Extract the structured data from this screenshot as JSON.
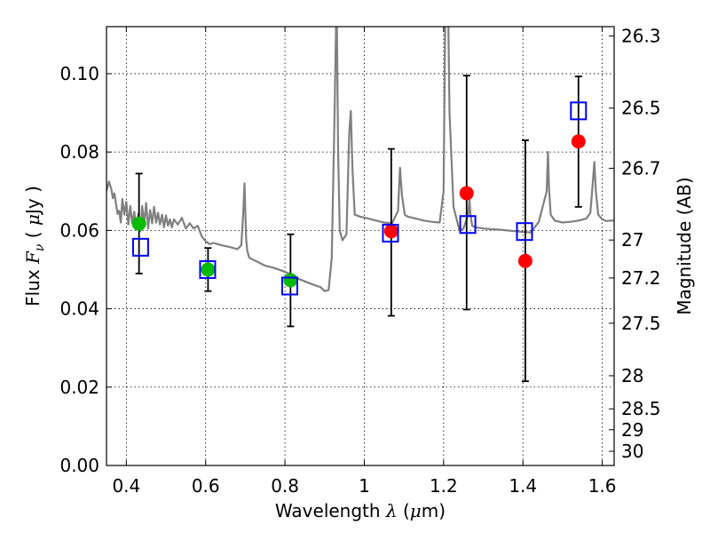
{
  "chart_data": {
    "type": "scatter",
    "xlabel": "Wavelength  λ (μm)",
    "ylabel": "Flux  F_ν  ( μJy )",
    "ylabel_parts": {
      "a": "Flux  ",
      "b": "F",
      "c": "ν",
      "d": "  ( ",
      "e": "μ",
      "f": "Jy )"
    },
    "xlabel_parts": {
      "a": "Wavelength  ",
      "b": "λ",
      "c": " (",
      "d": "μ",
      "e": "m)"
    },
    "y2label": "Magnitude (AB)",
    "xlim": [
      0.35,
      1.63
    ],
    "ylim": [
      0.0,
      0.112
    ],
    "grid": true,
    "x_ticks": [
      {
        "v": 0.4,
        "label": "0.4"
      },
      {
        "v": 0.6,
        "label": "0.6"
      },
      {
        "v": 0.8,
        "label": "0.8"
      },
      {
        "v": 1.0,
        "label": "1"
      },
      {
        "v": 1.2,
        "label": "1.2"
      },
      {
        "v": 1.4,
        "label": "1.4"
      },
      {
        "v": 1.6,
        "label": "1.6"
      }
    ],
    "y_ticks": [
      {
        "v": 0.0,
        "label": "0.00"
      },
      {
        "v": 0.02,
        "label": "0.02"
      },
      {
        "v": 0.04,
        "label": "0.04"
      },
      {
        "v": 0.06,
        "label": "0.06"
      },
      {
        "v": 0.08,
        "label": "0.08"
      },
      {
        "v": 0.1,
        "label": "0.10"
      }
    ],
    "y2_ticks": [
      {
        "label": "26.3",
        "mag": 26.3
      },
      {
        "label": "26.5",
        "mag": 26.5
      },
      {
        "label": "26.7",
        "mag": 26.7
      },
      {
        "label": "27",
        "mag": 27.0
      },
      {
        "label": "27.2",
        "mag": 27.2
      },
      {
        "label": "27.5",
        "mag": 27.5
      },
      {
        "label": "28",
        "mag": 28.0
      },
      {
        "label": "28.5",
        "mag": 28.5
      },
      {
        "label": "29",
        "mag": 29.0
      },
      {
        "label": "30",
        "mag": 30.0
      }
    ],
    "observed": [
      {
        "x": 0.432,
        "y": 0.0617,
        "ylo": 0.049,
        "yhi": 0.0745,
        "color": "#00bb00"
      },
      {
        "x": 0.606,
        "y": 0.05,
        "ylo": 0.0445,
        "yhi": 0.0555,
        "color": "#00bb00"
      },
      {
        "x": 0.814,
        "y": 0.0473,
        "ylo": 0.0355,
        "yhi": 0.059,
        "color": "#00bb00"
      },
      {
        "x": 1.068,
        "y": 0.0598,
        "ylo": 0.0382,
        "yhi": 0.0808,
        "color": "#ff0000"
      },
      {
        "x": 1.258,
        "y": 0.0695,
        "ylo": 0.0398,
        "yhi": 0.0995,
        "color": "#ff0000"
      },
      {
        "x": 1.406,
        "y": 0.0522,
        "ylo": 0.0215,
        "yhi": 0.083,
        "color": "#ff0000"
      },
      {
        "x": 1.54,
        "y": 0.0827,
        "ylo": 0.066,
        "yhi": 0.0993,
        "color": "#ff0000"
      }
    ],
    "model_points": [
      {
        "x": 0.436,
        "y": 0.0557
      },
      {
        "x": 0.605,
        "y": 0.05
      },
      {
        "x": 0.812,
        "y": 0.0458
      },
      {
        "x": 1.066,
        "y": 0.0593
      },
      {
        "x": 1.261,
        "y": 0.0615
      },
      {
        "x": 1.404,
        "y": 0.0597
      },
      {
        "x": 1.54,
        "y": 0.0905
      }
    ],
    "sed_line": {
      "color": "#808080",
      "x": [
        0.35,
        0.356,
        0.362,
        0.366,
        0.37,
        0.374,
        0.378,
        0.382,
        0.386,
        0.39,
        0.395,
        0.4,
        0.405,
        0.41,
        0.415,
        0.42,
        0.425,
        0.43,
        0.436,
        0.44,
        0.445,
        0.45,
        0.455,
        0.46,
        0.465,
        0.47,
        0.475,
        0.48,
        0.485,
        0.49,
        0.495,
        0.5,
        0.505,
        0.51,
        0.515,
        0.52,
        0.53,
        0.54,
        0.55,
        0.56,
        0.57,
        0.58,
        0.59,
        0.6,
        0.61,
        0.62,
        0.64,
        0.66,
        0.68,
        0.69,
        0.695,
        0.698,
        0.702,
        0.705,
        0.71,
        0.73,
        0.75,
        0.77,
        0.79,
        0.81,
        0.83,
        0.85,
        0.87,
        0.89,
        0.9,
        0.91,
        0.918,
        0.925,
        0.929,
        0.931,
        0.934,
        0.938,
        0.945,
        0.955,
        0.962,
        0.966,
        0.97,
        0.976,
        0.99,
        1.01,
        1.03,
        1.05,
        1.07,
        1.085,
        1.09,
        1.095,
        1.102,
        1.11,
        1.13,
        1.15,
        1.17,
        1.19,
        1.2,
        1.204,
        1.208,
        1.212,
        1.215,
        1.225,
        1.24,
        1.25,
        1.262,
        1.265,
        1.268,
        1.272,
        1.28,
        1.3,
        1.32,
        1.34,
        1.36,
        1.38,
        1.4,
        1.42,
        1.44,
        1.46,
        1.463,
        1.466,
        1.47,
        1.48,
        1.5,
        1.52,
        1.54,
        1.56,
        1.57,
        1.576,
        1.58,
        1.584,
        1.59,
        1.6,
        1.61,
        1.62,
        1.63
      ],
      "y": [
        0.07,
        0.0725,
        0.0705,
        0.0682,
        0.0695,
        0.0668,
        0.0642,
        0.065,
        0.062,
        0.068,
        0.064,
        0.0673,
        0.0615,
        0.0662,
        0.0618,
        0.0648,
        0.0602,
        0.0643,
        0.0598,
        0.0662,
        0.0618,
        0.067,
        0.0605,
        0.0652,
        0.0618,
        0.066,
        0.062,
        0.0645,
        0.0615,
        0.064,
        0.0608,
        0.0638,
        0.0612,
        0.0628,
        0.0608,
        0.0628,
        0.0615,
        0.0632,
        0.0605,
        0.0618,
        0.0605,
        0.0612,
        0.0585,
        0.0572,
        0.0565,
        0.0568,
        0.0562,
        0.0558,
        0.0552,
        0.0562,
        0.065,
        0.072,
        0.058,
        0.0548,
        0.053,
        0.052,
        0.051,
        0.0505,
        0.0498,
        0.049,
        0.0478,
        0.047,
        0.0462,
        0.0455,
        0.0445,
        0.0448,
        0.053,
        0.09,
        0.113,
        0.113,
        0.08,
        0.06,
        0.0575,
        0.059,
        0.085,
        0.0905,
        0.076,
        0.064,
        0.0635,
        0.063,
        0.0625,
        0.062,
        0.0618,
        0.065,
        0.076,
        0.069,
        0.064,
        0.0635,
        0.063,
        0.0625,
        0.0622,
        0.062,
        0.07,
        0.113,
        0.113,
        0.113,
        0.09,
        0.066,
        0.06,
        0.0605,
        0.064,
        0.068,
        0.064,
        0.0612,
        0.0608,
        0.0605,
        0.0603,
        0.0602,
        0.06,
        0.0598,
        0.0596,
        0.0595,
        0.0622,
        0.07,
        0.08,
        0.0705,
        0.064,
        0.0625,
        0.062,
        0.0622,
        0.0625,
        0.063,
        0.0645,
        0.072,
        0.0775,
        0.07,
        0.064,
        0.0628,
        0.0624,
        0.0625,
        0.0625
      ]
    }
  }
}
